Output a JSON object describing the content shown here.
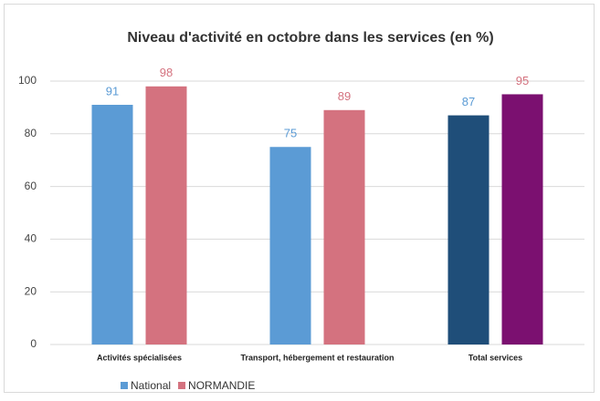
{
  "chart_data": {
    "type": "bar",
    "title": "Niveau d'activité en octobre dans les services (en %)",
    "categories": [
      "Activités spécialisées",
      "Transport, hébergement et restauration",
      "Total services"
    ],
    "series": [
      {
        "name": "National",
        "color": "#5b9bd5",
        "colors": [
          "#5b9bd5",
          "#5b9bd5",
          "#1f4e79"
        ],
        "values": [
          91,
          75,
          87
        ]
      },
      {
        "name": "NORMANDIE",
        "color": "#d4727f",
        "colors": [
          "#d4727f",
          "#d4727f",
          "#7b1070"
        ],
        "values": [
          98,
          89,
          95
        ]
      }
    ],
    "ylim": [
      0,
      100
    ],
    "yticks": [
      0,
      20,
      40,
      60,
      80,
      100
    ],
    "grid": true,
    "legend": "bottom-left"
  }
}
